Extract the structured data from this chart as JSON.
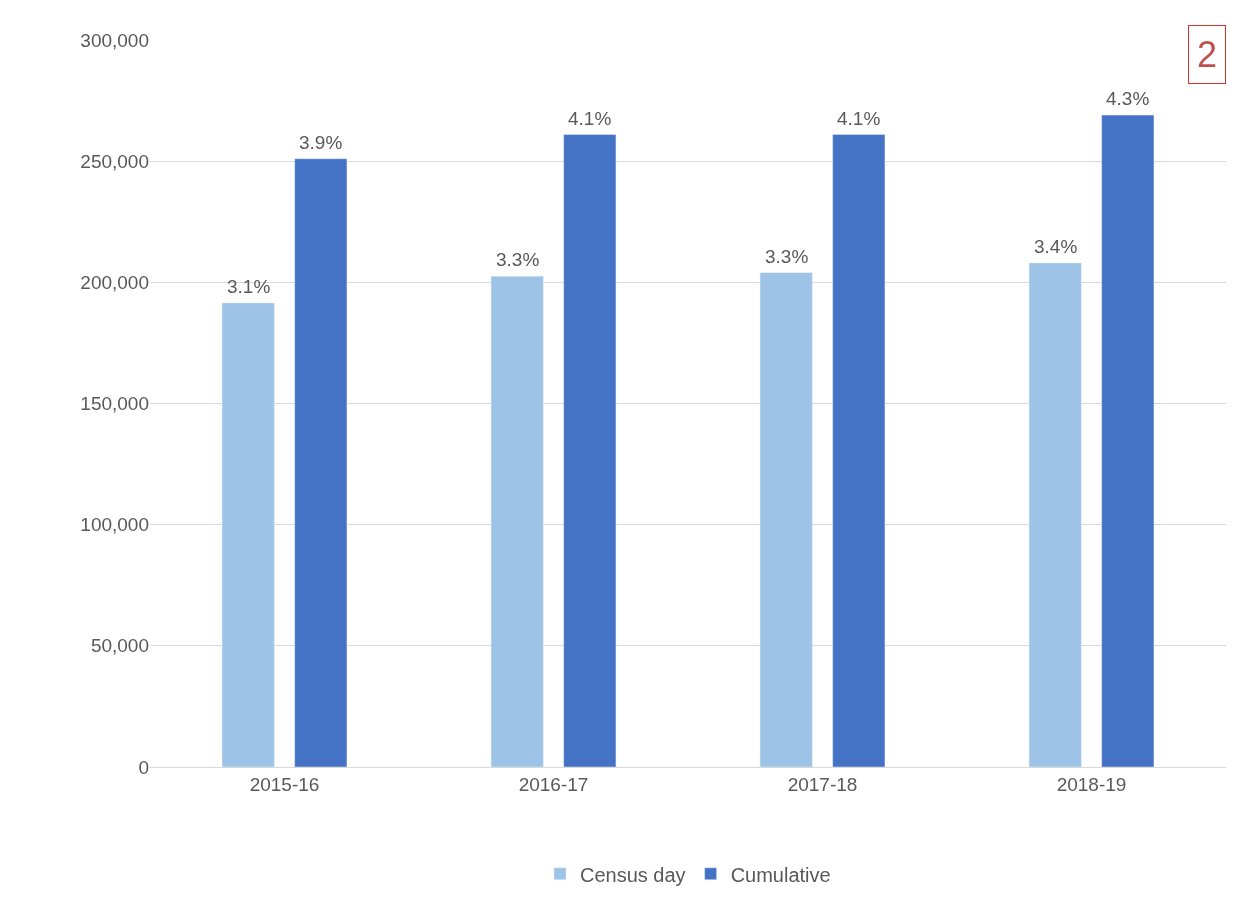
{
  "chart_data": {
    "type": "bar",
    "categories": [
      "2015-16",
      "2016-17",
      "2017-18",
      "2018-19"
    ],
    "series": [
      {
        "name": "Census day",
        "color": "#9dc3e6",
        "values": [
          191500,
          202500,
          204000,
          208000
        ]
      },
      {
        "name": "Cumulative",
        "color": "#4472c4",
        "values": [
          251000,
          261000,
          261000,
          269000
        ]
      }
    ],
    "ylim": [
      0,
      300000
    ],
    "yticks": [
      {
        "value": 0,
        "label": "0"
      },
      {
        "value": 50000,
        "label": "50,000"
      },
      {
        "value": 100000,
        "label": "100,000"
      },
      {
        "value": 150000,
        "label": "150,000"
      },
      {
        "value": 200000,
        "label": "200,000"
      },
      {
        "value": 250000,
        "label": "250,000"
      },
      {
        "value": 300000,
        "label": "300,000"
      }
    ],
    "grid": "y",
    "legend": "bottom",
    "annotations": [
      "3.1%",
      "3.3%",
      "3.3%",
      "3.4%",
      "3.9%",
      "4.1%",
      "4.1%",
      "4.3%",
      "2"
    ]
  }
}
